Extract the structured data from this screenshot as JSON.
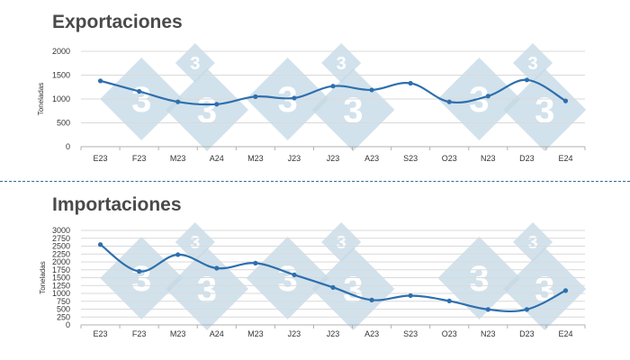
{
  "colors": {
    "series": "#2d6fae",
    "grid": "#d9d9d9",
    "axis": "#b0b0b0",
    "title": "#4a4a4a",
    "divider": "#2e6b97",
    "watermark": "#c3d8e6"
  },
  "watermark": {
    "large_text": "3",
    "small_text": "3"
  },
  "chart_data": [
    {
      "type": "line",
      "title": "Exportaciones",
      "xlabel": "",
      "ylabel": "Toneladas",
      "grid": true,
      "legend": "none",
      "categories": [
        "E23",
        "F23",
        "M23",
        "A24",
        "M23",
        "J23",
        "J23",
        "A23",
        "S23",
        "O23",
        "N23",
        "D23",
        "E24"
      ],
      "yticks": [
        0,
        500,
        1000,
        1500,
        2000
      ],
      "ylim": [
        0,
        2000
      ],
      "series": [
        {
          "values": [
            1380,
            1160,
            940,
            890,
            1050,
            1020,
            1270,
            1190,
            1330,
            940,
            1060,
            1400,
            960
          ]
        }
      ]
    },
    {
      "type": "line",
      "title": "Importaciones",
      "xlabel": "",
      "ylabel": "Toneladas",
      "grid": true,
      "legend": "none",
      "categories": [
        "E23",
        "F23",
        "M23",
        "A24",
        "M23",
        "J23",
        "J23",
        "A23",
        "S23",
        "O23",
        "N23",
        "D23",
        "E24"
      ],
      "yticks": [
        0,
        250,
        500,
        750,
        1000,
        1250,
        1500,
        1750,
        2000,
        2250,
        2500,
        2750,
        3000
      ],
      "ylim": [
        0,
        3000
      ],
      "series": [
        {
          "values": [
            2550,
            1700,
            2230,
            1800,
            1960,
            1590,
            1190,
            790,
            930,
            760,
            490,
            490,
            1090
          ]
        }
      ]
    }
  ]
}
